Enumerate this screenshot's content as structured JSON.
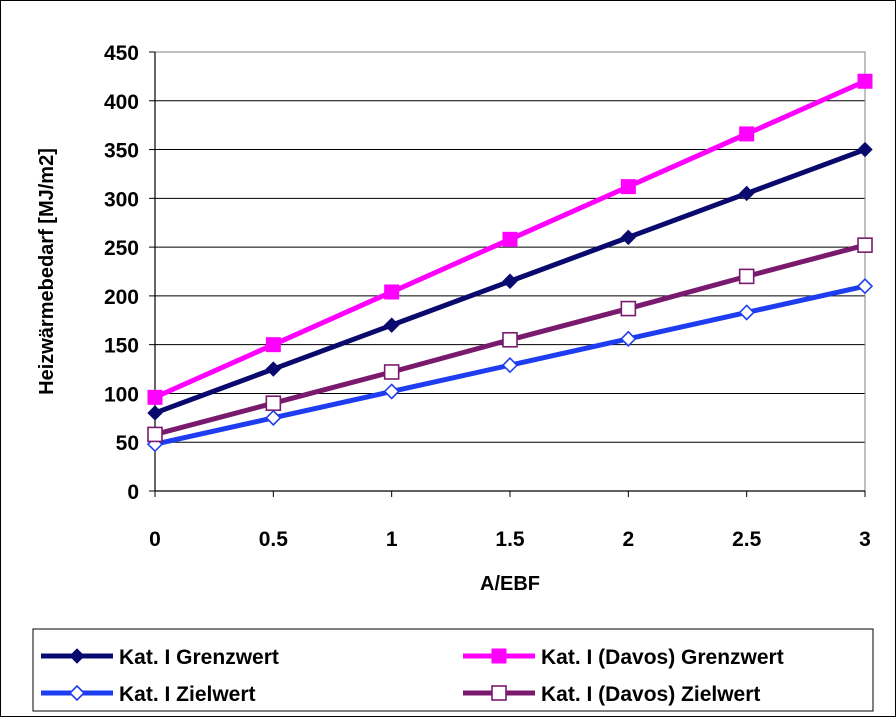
{
  "chart_data": {
    "type": "line",
    "xlabel": "A/EBF",
    "ylabel": "Heizwärmebedarf [MJ/m2]",
    "x": [
      0,
      0.5,
      1,
      1.5,
      2,
      2.5,
      3
    ],
    "x_tick_labels": [
      "0",
      "0.5",
      "1",
      "1.5",
      "2",
      "2.5",
      "3"
    ],
    "y_tick_labels": [
      "0",
      "50",
      "100",
      "150",
      "200",
      "250",
      "300",
      "350",
      "400",
      "450"
    ],
    "xlim": [
      0,
      3
    ],
    "ylim": [
      0,
      450
    ],
    "grid": "horizontal",
    "legend_position": "bottom",
    "series": [
      {
        "name": "Kat. I Grenzwert",
        "color": "#0a0a6e",
        "marker": "filled-diamond",
        "values": [
          80,
          125,
          170,
          215,
          260,
          305,
          350
        ]
      },
      {
        "name": "Kat. I (Davos) Grenzwert",
        "color": "#ff00ff",
        "marker": "filled-square",
        "values": [
          96,
          150,
          204,
          258,
          312,
          366,
          420
        ]
      },
      {
        "name": "Kat. I Zielwert",
        "color": "#1e3cf0",
        "marker": "hollow-diamond",
        "values": [
          48,
          75,
          102,
          129,
          156,
          183,
          210
        ]
      },
      {
        "name": "Kat. I (Davos) Zielwert",
        "color": "#7a1a6e",
        "marker": "hollow-square",
        "values": [
          58,
          90,
          122,
          155,
          187,
          220,
          252
        ]
      }
    ]
  }
}
